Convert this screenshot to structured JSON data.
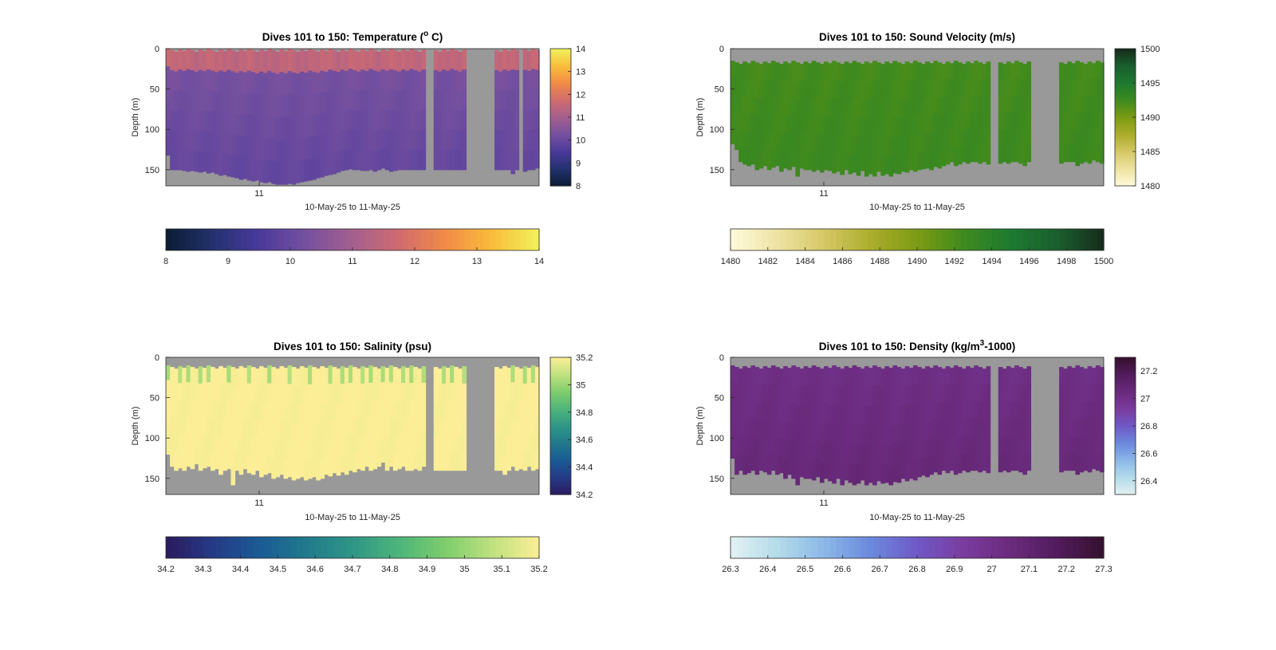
{
  "chart_data": [
    {
      "type": "heatmap",
      "title": "Dives 101 to 150: Temperature (° C)",
      "title_parts": [
        "Dives 101 to 150: Temperature (",
        "o",
        " C)"
      ],
      "xlabel": "10-May-25 to 11-May-25",
      "ylabel": "Depth (m)",
      "x_ticks": [
        "11"
      ],
      "y_ticks": [
        "0",
        "50",
        "100",
        "150"
      ],
      "ylim": [
        0,
        170
      ],
      "side_colorbar_ticks": [
        "8",
        "9",
        "10",
        "11",
        "12",
        "13",
        "14"
      ],
      "bottom_colorbar_ticks": [
        "8",
        "9",
        "10",
        "11",
        "12",
        "13",
        "14"
      ],
      "clim": [
        8,
        14
      ],
      "colormap": [
        "#0b1c33",
        "#23316e",
        "#4a3a9c",
        "#75509f",
        "#a45f8e",
        "#d06b6f",
        "#f18b47",
        "#f9bd3b",
        "#f0f25c"
      ],
      "missing_color": "#999999",
      "field": {
        "surface_value": 11.3,
        "mid_value": 10.3,
        "deep_value": 9.9,
        "surface_depth": 18,
        "warm_band": 12.3
      },
      "data_top_depth": 0,
      "data_bottom_depth_by_column": [
        132,
        150,
        150,
        150,
        151,
        152,
        151,
        152,
        153,
        152,
        154,
        153,
        155,
        157,
        156,
        158,
        159,
        160,
        162,
        161,
        163,
        164,
        163,
        165,
        166,
        165,
        167,
        168,
        168,
        168,
        167,
        168,
        166,
        165,
        164,
        163,
        162,
        160,
        159,
        157,
        156,
        155,
        153,
        151,
        150,
        149,
        150,
        150,
        151,
        151,
        150,
        152,
        150,
        148,
        150,
        152,
        151,
        150,
        150,
        150,
        150,
        150,
        150,
        150,
        150,
        150,
        150,
        150,
        150,
        150,
        150,
        150,
        150,
        150,
        150,
        150,
        150,
        150,
        150,
        150,
        150,
        150,
        150,
        150,
        150,
        155,
        150,
        148,
        152,
        150,
        150,
        148
      ],
      "gaps": [
        [
          0.7,
          0.72
        ],
        [
          0.8,
          0.88
        ],
        [
          0.95,
          0.96
        ]
      ]
    },
    {
      "type": "heatmap",
      "title": "Dives 101 to 150: Sound Velocity (m/s)",
      "xlabel": "10-May-25 to 11-May-25",
      "ylabel": "Depth (m)",
      "x_ticks": [
        "11"
      ],
      "y_ticks": [
        "0",
        "50",
        "100",
        "150"
      ],
      "ylim": [
        0,
        170
      ],
      "side_colorbar_ticks": [
        "1480",
        "1485",
        "1490",
        "1495",
        "1500"
      ],
      "bottom_colorbar_ticks": [
        "1480",
        "1482",
        "1484",
        "1486",
        "1488",
        "1490",
        "1492",
        "1494",
        "1496",
        "1498",
        "1500"
      ],
      "clim": [
        1480,
        1500
      ],
      "colormap": [
        "#fefbdc",
        "#eee3a2",
        "#d6c866",
        "#acad2c",
        "#7c9b14",
        "#3f8a1e",
        "#1d7a30",
        "#1a5f2e",
        "#172a1c"
      ],
      "missing_color": "#999999",
      "field": {
        "surface_value": 1494.8,
        "mid_value": 1492.3,
        "deep_value": 1492.8,
        "surface_depth": 20,
        "warm_band": 1497.5
      },
      "data_top_depth": 15,
      "data_bottom_depth_by_column": [
        118,
        125,
        140,
        143,
        145,
        143,
        150,
        148,
        145,
        150,
        147,
        145,
        152,
        148,
        150,
        146,
        158,
        148,
        150,
        150,
        152,
        150,
        153,
        150,
        151,
        154,
        152,
        156,
        150,
        155,
        153,
        157,
        151,
        158,
        155,
        158,
        152,
        157,
        155,
        158,
        154,
        155,
        152,
        153,
        150,
        152,
        150,
        149,
        148,
        150,
        146,
        148,
        145,
        143,
        140,
        145,
        143,
        140,
        142,
        140,
        140,
        142,
        140,
        143,
        140,
        140,
        142,
        140,
        142,
        140,
        140,
        142,
        145,
        140,
        142,
        140,
        143,
        140,
        145,
        140,
        140,
        142,
        140,
        140,
        140,
        145,
        142,
        140,
        142,
        138,
        140,
        142
      ],
      "gaps": [
        [
          0.7,
          0.72
        ],
        [
          0.8,
          0.88
        ]
      ]
    },
    {
      "type": "heatmap",
      "title": "Dives 101 to 150: Salinity (psu)",
      "xlabel": "10-May-25 to 11-May-25",
      "ylabel": "Depth (m)",
      "x_ticks": [
        "11"
      ],
      "y_ticks": [
        "0",
        "50",
        "100",
        "150"
      ],
      "ylim": [
        0,
        170
      ],
      "side_colorbar_ticks": [
        "34.2",
        "34.4",
        "34.6",
        "34.8",
        "35",
        "35.2"
      ],
      "bottom_colorbar_ticks": [
        "34.2",
        "34.3",
        "34.4",
        "34.5",
        "34.6",
        "34.7",
        "34.8",
        "34.9",
        "35",
        "35.1",
        "35.2"
      ],
      "clim": [
        34.2,
        35.2
      ],
      "colormap": [
        "#2a1a5e",
        "#253a86",
        "#1a5a95",
        "#217a8c",
        "#2f9686",
        "#4db57a",
        "#7fcd6c",
        "#bfe17f",
        "#fbee96"
      ],
      "missing_color": "#999999",
      "field": {
        "surface_value": 35.05,
        "mid_value": 35.2,
        "deep_value": 35.2,
        "surface_depth": 22,
        "warm_band": 34.9
      },
      "data_top_depth": 10,
      "data_bottom_depth_by_column": [
        120,
        135,
        140,
        137,
        140,
        135,
        138,
        132,
        140,
        137,
        135,
        140,
        138,
        145,
        140,
        138,
        158,
        140,
        145,
        138,
        143,
        145,
        140,
        148,
        145,
        143,
        150,
        148,
        145,
        150,
        148,
        152,
        150,
        148,
        152,
        150,
        148,
        152,
        150,
        145,
        147,
        143,
        146,
        142,
        145,
        140,
        142,
        138,
        140,
        135,
        140,
        138,
        135,
        130,
        140,
        135,
        140,
        138,
        135,
        140,
        140,
        138,
        140,
        135,
        140,
        140,
        140,
        140,
        140,
        140,
        140,
        140,
        140,
        140,
        140,
        140,
        140,
        140,
        140,
        140,
        140,
        140,
        140,
        145,
        140,
        135,
        140,
        138,
        140,
        135,
        140,
        138
      ],
      "gaps": [
        [
          0.7,
          0.72
        ],
        [
          0.8,
          0.88
        ]
      ]
    },
    {
      "type": "heatmap",
      "title": "Dives 101 to 150: Density (kg/m³-1000)",
      "title_parts": [
        "Dives 101 to 150: Density (kg/m",
        "3",
        "-1000)"
      ],
      "xlabel": "10-May-25 to 11-May-25",
      "ylabel": "Depth (m)",
      "x_ticks": [
        "11"
      ],
      "y_ticks": [
        "0",
        "50",
        "100",
        "150"
      ],
      "ylim": [
        0,
        170
      ],
      "side_colorbar_ticks": [
        "26.4",
        "26.6",
        "26.8",
        "27",
        "27.2"
      ],
      "bottom_colorbar_ticks": [
        "26.3",
        "26.4",
        "26.5",
        "26.6",
        "26.7",
        "26.8",
        "26.9",
        "27",
        "27.1",
        "27.2",
        "27.3"
      ],
      "clim": [
        26.3,
        27.3
      ],
      "colormap": [
        "#e3f1f3",
        "#b4dcea",
        "#8cb8e8",
        "#6b89dd",
        "#7059c6",
        "#7a3c9f",
        "#6a2b7d",
        "#521c5c",
        "#35102e"
      ],
      "missing_color": "#999999",
      "field": {
        "surface_value": 26.65,
        "mid_value": 27.02,
        "deep_value": 27.08,
        "surface_depth": 18,
        "warm_band": 26.55
      },
      "data_top_depth": 10,
      "data_bottom_depth_by_column": [
        125,
        145,
        140,
        145,
        143,
        140,
        145,
        140,
        142,
        145,
        140,
        145,
        143,
        150,
        145,
        150,
        158,
        148,
        150,
        150,
        152,
        148,
        155,
        150,
        153,
        156,
        150,
        158,
        152,
        155,
        158,
        156,
        152,
        158,
        155,
        158,
        153,
        156,
        155,
        158,
        154,
        155,
        150,
        153,
        150,
        152,
        148,
        146,
        148,
        145,
        142,
        145,
        140,
        143,
        140,
        145,
        143,
        140,
        142,
        140,
        140,
        142,
        140,
        143,
        140,
        140,
        142,
        140,
        142,
        140,
        140,
        142,
        145,
        140,
        142,
        140,
        143,
        140,
        145,
        140,
        140,
        142,
        140,
        140,
        140,
        145,
        142,
        140,
        142,
        138,
        140,
        142
      ],
      "gaps": [
        [
          0.7,
          0.72
        ],
        [
          0.8,
          0.88
        ]
      ]
    }
  ]
}
